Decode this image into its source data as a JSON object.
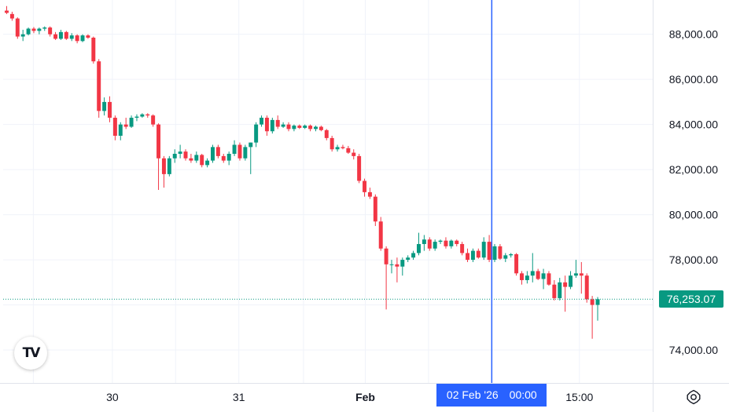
{
  "chart_data": {
    "type": "candlestick",
    "y_ticks": [
      "88,000.00",
      "86,000.00",
      "84,000.00",
      "82,000.00",
      "80,000.00",
      "78,000.00",
      "74,000.00"
    ],
    "y_tick_values": [
      88000,
      86000,
      84000,
      82000,
      80000,
      78000,
      74000
    ],
    "x_ticks": [
      {
        "label": "30",
        "t": 3.8
      },
      {
        "label": "31",
        "t": 8.2
      },
      {
        "label": "Feb",
        "t": 12.6
      },
      {
        "label": "15:00",
        "t": 20.05
      }
    ],
    "last_price": "76,253.07",
    "last_price_value": 76253.07,
    "crosshair": {
      "date": "02 Feb '26",
      "time": "00:00",
      "t": 17.0
    },
    "ylim": [
      72540,
      89520
    ],
    "xlim": [
      0,
      22.6
    ],
    "colors": {
      "up": "#089981",
      "down": "#f23645",
      "crosshair": "#2962ff",
      "last_price": "#089981"
    },
    "grid": true,
    "candles": [
      {
        "o": 89050,
        "h": 89250,
        "l": 88900,
        "c": 88950
      },
      {
        "o": 88900,
        "h": 89000,
        "l": 88600,
        "c": 88700
      },
      {
        "o": 88700,
        "h": 88750,
        "l": 87800,
        "c": 87900
      },
      {
        "o": 87900,
        "h": 88200,
        "l": 87700,
        "c": 88000
      },
      {
        "o": 88000,
        "h": 88300,
        "l": 87950,
        "c": 88250
      },
      {
        "o": 88250,
        "h": 88320,
        "l": 88050,
        "c": 88150
      },
      {
        "o": 88150,
        "h": 88300,
        "l": 88000,
        "c": 88250
      },
      {
        "o": 88250,
        "h": 88350,
        "l": 88150,
        "c": 88300
      },
      {
        "o": 88300,
        "h": 88350,
        "l": 87900,
        "c": 88000
      },
      {
        "o": 88000,
        "h": 88100,
        "l": 87750,
        "c": 87800
      },
      {
        "o": 87800,
        "h": 88200,
        "l": 87750,
        "c": 88100
      },
      {
        "o": 88100,
        "h": 88150,
        "l": 87750,
        "c": 87800
      },
      {
        "o": 87800,
        "h": 88050,
        "l": 87700,
        "c": 87950
      },
      {
        "o": 87950,
        "h": 88000,
        "l": 87600,
        "c": 87700
      },
      {
        "o": 87700,
        "h": 88000,
        "l": 87650,
        "c": 87950
      },
      {
        "o": 87950,
        "h": 88000,
        "l": 87800,
        "c": 87850
      },
      {
        "o": 87850,
        "h": 87900,
        "l": 86700,
        "c": 86800
      },
      {
        "o": 86800,
        "h": 86900,
        "l": 84300,
        "c": 84600
      },
      {
        "o": 84600,
        "h": 85200,
        "l": 84400,
        "c": 85000
      },
      {
        "o": 85000,
        "h": 85250,
        "l": 84100,
        "c": 84300
      },
      {
        "o": 84300,
        "h": 84400,
        "l": 83300,
        "c": 83500
      },
      {
        "o": 83500,
        "h": 84100,
        "l": 83300,
        "c": 84000
      },
      {
        "o": 84000,
        "h": 84300,
        "l": 83800,
        "c": 83900
      },
      {
        "o": 83900,
        "h": 84400,
        "l": 83850,
        "c": 84300
      },
      {
        "o": 84300,
        "h": 84450,
        "l": 84150,
        "c": 84350
      },
      {
        "o": 84350,
        "h": 84500,
        "l": 84300,
        "c": 84450
      },
      {
        "o": 84450,
        "h": 84500,
        "l": 84300,
        "c": 84400
      },
      {
        "o": 84400,
        "h": 84450,
        "l": 83900,
        "c": 84000
      },
      {
        "o": 84000,
        "h": 84050,
        "l": 81100,
        "c": 82500
      },
      {
        "o": 82500,
        "h": 82600,
        "l": 81200,
        "c": 81800
      },
      {
        "o": 81800,
        "h": 82600,
        "l": 81700,
        "c": 82500
      },
      {
        "o": 82500,
        "h": 82900,
        "l": 82300,
        "c": 82700
      },
      {
        "o": 82700,
        "h": 83100,
        "l": 82500,
        "c": 82800
      },
      {
        "o": 82800,
        "h": 82900,
        "l": 82400,
        "c": 82500
      },
      {
        "o": 82500,
        "h": 82700,
        "l": 82300,
        "c": 82400
      },
      {
        "o": 82400,
        "h": 82800,
        "l": 82300,
        "c": 82650
      },
      {
        "o": 82650,
        "h": 82700,
        "l": 82100,
        "c": 82200
      },
      {
        "o": 82200,
        "h": 82500,
        "l": 82100,
        "c": 82400
      },
      {
        "o": 82400,
        "h": 83100,
        "l": 82300,
        "c": 83000
      },
      {
        "o": 83000,
        "h": 83100,
        "l": 82500,
        "c": 82600
      },
      {
        "o": 82600,
        "h": 82700,
        "l": 82300,
        "c": 82400
      },
      {
        "o": 82400,
        "h": 82800,
        "l": 82200,
        "c": 82700
      },
      {
        "o": 82700,
        "h": 83300,
        "l": 82600,
        "c": 83100
      },
      {
        "o": 83100,
        "h": 83200,
        "l": 82400,
        "c": 82500
      },
      {
        "o": 82500,
        "h": 83100,
        "l": 82400,
        "c": 83000
      },
      {
        "o": 83000,
        "h": 83200,
        "l": 81800,
        "c": 83200
      },
      {
        "o": 83200,
        "h": 84100,
        "l": 83000,
        "c": 84000
      },
      {
        "o": 84000,
        "h": 84400,
        "l": 83900,
        "c": 84300
      },
      {
        "o": 84300,
        "h": 84400,
        "l": 83500,
        "c": 83700
      },
      {
        "o": 83700,
        "h": 84300,
        "l": 83600,
        "c": 84200
      },
      {
        "o": 84200,
        "h": 84400,
        "l": 83800,
        "c": 83900
      },
      {
        "o": 83900,
        "h": 84100,
        "l": 83850,
        "c": 84000
      },
      {
        "o": 84000,
        "h": 84100,
        "l": 83700,
        "c": 83800
      },
      {
        "o": 83800,
        "h": 84000,
        "l": 83700,
        "c": 83950
      },
      {
        "o": 83950,
        "h": 84000,
        "l": 83800,
        "c": 83850
      },
      {
        "o": 83850,
        "h": 84000,
        "l": 83800,
        "c": 83950
      },
      {
        "o": 83950,
        "h": 84000,
        "l": 83700,
        "c": 83800
      },
      {
        "o": 83800,
        "h": 83950,
        "l": 83700,
        "c": 83900
      },
      {
        "o": 83900,
        "h": 83950,
        "l": 83700,
        "c": 83750
      },
      {
        "o": 83750,
        "h": 83800,
        "l": 83300,
        "c": 83400
      },
      {
        "o": 83400,
        "h": 83500,
        "l": 82800,
        "c": 82900
      },
      {
        "o": 82900,
        "h": 83100,
        "l": 82800,
        "c": 83000
      },
      {
        "o": 83000,
        "h": 83100,
        "l": 82900,
        "c": 82950
      },
      {
        "o": 82950,
        "h": 83050,
        "l": 82700,
        "c": 82750
      },
      {
        "o": 82750,
        "h": 82900,
        "l": 82450,
        "c": 82600
      },
      {
        "o": 82600,
        "h": 82700,
        "l": 81400,
        "c": 81500
      },
      {
        "o": 81500,
        "h": 81600,
        "l": 80800,
        "c": 81000
      },
      {
        "o": 81000,
        "h": 81200,
        "l": 80700,
        "c": 80800
      },
      {
        "o": 80800,
        "h": 80900,
        "l": 79500,
        "c": 79700
      },
      {
        "o": 79700,
        "h": 79900,
        "l": 78400,
        "c": 78500
      },
      {
        "o": 78500,
        "h": 78600,
        "l": 75800,
        "c": 77800
      },
      {
        "o": 77800,
        "h": 78000,
        "l": 77400,
        "c": 77800
      },
      {
        "o": 77800,
        "h": 78100,
        "l": 77000,
        "c": 77700
      },
      {
        "o": 77700,
        "h": 78100,
        "l": 77300,
        "c": 78000
      },
      {
        "o": 78000,
        "h": 78200,
        "l": 77900,
        "c": 78100
      },
      {
        "o": 78100,
        "h": 78400,
        "l": 78000,
        "c": 78300
      },
      {
        "o": 78300,
        "h": 79200,
        "l": 78200,
        "c": 78700
      },
      {
        "o": 78700,
        "h": 79100,
        "l": 78400,
        "c": 78900
      },
      {
        "o": 78900,
        "h": 79000,
        "l": 78400,
        "c": 78500
      },
      {
        "o": 78500,
        "h": 78900,
        "l": 78400,
        "c": 78800
      },
      {
        "o": 78800,
        "h": 78900,
        "l": 78700,
        "c": 78850
      },
      {
        "o": 78850,
        "h": 79000,
        "l": 78500,
        "c": 78600
      },
      {
        "o": 78600,
        "h": 78900,
        "l": 78500,
        "c": 78850
      },
      {
        "o": 78850,
        "h": 78900,
        "l": 78600,
        "c": 78700
      },
      {
        "o": 78700,
        "h": 78800,
        "l": 78200,
        "c": 78300
      },
      {
        "o": 78300,
        "h": 78500,
        "l": 77900,
        "c": 78000
      },
      {
        "o": 78000,
        "h": 78500,
        "l": 77900,
        "c": 78400
      },
      {
        "o": 78400,
        "h": 78500,
        "l": 78050,
        "c": 78100
      },
      {
        "o": 78100,
        "h": 79000,
        "l": 78000,
        "c": 78800
      },
      {
        "o": 78800,
        "h": 79100,
        "l": 77900,
        "c": 78000
      },
      {
        "o": 78000,
        "h": 78700,
        "l": 77900,
        "c": 78600
      },
      {
        "o": 78600,
        "h": 78700,
        "l": 78000,
        "c": 78050
      },
      {
        "o": 78050,
        "h": 78300,
        "l": 77900,
        "c": 78200
      },
      {
        "o": 78200,
        "h": 78300,
        "l": 78100,
        "c": 78250
      },
      {
        "o": 78250,
        "h": 78300,
        "l": 77300,
        "c": 77400
      },
      {
        "o": 77400,
        "h": 77500,
        "l": 76900,
        "c": 77100
      },
      {
        "o": 77100,
        "h": 77500,
        "l": 76950,
        "c": 77300
      },
      {
        "o": 77300,
        "h": 78300,
        "l": 77000,
        "c": 77500
      },
      {
        "o": 77500,
        "h": 77600,
        "l": 77100,
        "c": 77150
      },
      {
        "o": 77150,
        "h": 77600,
        "l": 76700,
        "c": 77400
      },
      {
        "o": 77400,
        "h": 77500,
        "l": 76850,
        "c": 76900
      },
      {
        "o": 76900,
        "h": 77100,
        "l": 76200,
        "c": 76300
      },
      {
        "o": 76300,
        "h": 77200,
        "l": 76200,
        "c": 77000
      },
      {
        "o": 77000,
        "h": 77300,
        "l": 75700,
        "c": 76800
      },
      {
        "o": 76800,
        "h": 77500,
        "l": 76700,
        "c": 77300
      },
      {
        "o": 77300,
        "h": 78000,
        "l": 77200,
        "c": 77400
      },
      {
        "o": 77400,
        "h": 77900,
        "l": 76500,
        "c": 77300
      },
      {
        "o": 77300,
        "h": 77400,
        "l": 76100,
        "c": 76250
      },
      {
        "o": 76250,
        "h": 76400,
        "l": 74500,
        "c": 76000
      },
      {
        "o": 76000,
        "h": 76350,
        "l": 75300,
        "c": 76253
      }
    ]
  }
}
